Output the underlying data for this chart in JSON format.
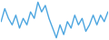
{
  "values": [
    60,
    80,
    65,
    55,
    70,
    50,
    65,
    55,
    75,
    65,
    90,
    75,
    85,
    65,
    50,
    35,
    55,
    40,
    60,
    50,
    70,
    55,
    65,
    45,
    55,
    70,
    55,
    70,
    60,
    75
  ],
  "line_color": "#4da6e0",
  "bg_color": "#ffffff",
  "linewidth": 1.0
}
